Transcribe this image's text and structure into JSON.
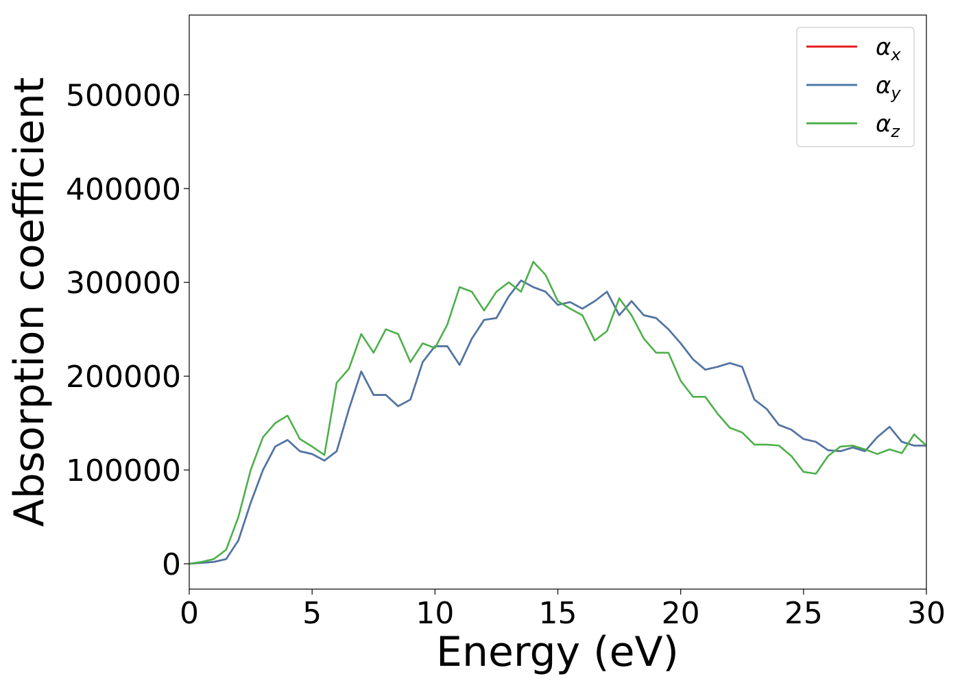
{
  "chart_data": {
    "type": "line",
    "xlabel": "Energy (eV)",
    "ylabel": "Absorption coefficient",
    "xlim": [
      0,
      30
    ],
    "ylim": [
      -27000,
      585000
    ],
    "x_ticks": [
      "0",
      "5",
      "10",
      "15",
      "20",
      "25",
      "30"
    ],
    "y_ticks": [
      "0",
      "100000",
      "200000",
      "300000",
      "400000",
      "500000"
    ],
    "x_tick_values": [
      0,
      5,
      10,
      15,
      20,
      25,
      30
    ],
    "y_tick_values": [
      0,
      100000,
      200000,
      300000,
      400000,
      500000
    ],
    "grid": false,
    "legend_position": "top-right",
    "x": [
      0,
      0.5,
      1,
      1.5,
      2,
      2.5,
      3,
      3.5,
      4,
      4.5,
      5,
      5.5,
      6,
      6.5,
      7,
      7.5,
      8,
      8.5,
      9,
      9.5,
      10,
      10.5,
      11,
      11.5,
      12,
      12.5,
      13,
      13.5,
      14,
      14.5,
      15,
      15.5,
      16,
      16.5,
      17,
      17.5,
      18,
      18.5,
      19,
      19.5,
      20,
      20.5,
      21,
      21.5,
      22,
      22.5,
      23,
      23.5,
      24,
      24.5,
      25,
      25.5,
      26,
      26.5,
      27,
      27.5,
      28,
      28.5,
      29,
      29.5,
      30
    ],
    "series": [
      {
        "name": "α",
        "subscript": "x",
        "color": "#e41a1c",
        "values": [
          0,
          1000,
          2000,
          5000,
          25000,
          65000,
          100000,
          125000,
          132000,
          120000,
          117000,
          110000,
          120000,
          165000,
          205000,
          180000,
          180000,
          168000,
          175000,
          215000,
          232000,
          232000,
          212000,
          240000,
          260000,
          262000,
          285000,
          302000,
          295000,
          290000,
          276000,
          279000,
          272000,
          280000,
          290000,
          265000,
          280000,
          265000,
          262000,
          250000,
          235000,
          218000,
          207000,
          210000,
          214000,
          210000,
          175000,
          165000,
          148000,
          143000,
          133000,
          130000,
          121000,
          120000,
          124000,
          120000,
          135000,
          146000,
          130000,
          126000,
          126000
        ]
      },
      {
        "name": "α",
        "subscript": "y",
        "color": "#4a78a8",
        "values": [
          0,
          1000,
          2000,
          5000,
          25000,
          65000,
          100000,
          125000,
          132000,
          120000,
          117000,
          110000,
          120000,
          165000,
          205000,
          180000,
          180000,
          168000,
          175000,
          215000,
          232000,
          232000,
          212000,
          240000,
          260000,
          262000,
          285000,
          302000,
          295000,
          290000,
          276000,
          279000,
          272000,
          280000,
          290000,
          265000,
          280000,
          265000,
          262000,
          250000,
          235000,
          218000,
          207000,
          210000,
          214000,
          210000,
          175000,
          165000,
          148000,
          143000,
          133000,
          130000,
          121000,
          120000,
          124000,
          120000,
          135000,
          146000,
          130000,
          126000,
          126000
        ]
      },
      {
        "name": "α",
        "subscript": "z",
        "color": "#4daf4a",
        "values": [
          0,
          2000,
          5000,
          15000,
          50000,
          100000,
          135000,
          150000,
          158000,
          133000,
          125000,
          116000,
          193000,
          208000,
          245000,
          225000,
          250000,
          245000,
          215000,
          235000,
          230000,
          255000,
          295000,
          290000,
          270000,
          290000,
          300000,
          290000,
          322000,
          308000,
          280000,
          272000,
          265000,
          238000,
          248000,
          283000,
          265000,
          240000,
          225000,
          225000,
          195000,
          178000,
          178000,
          160000,
          145000,
          140000,
          127000,
          127000,
          126000,
          115000,
          98000,
          96000,
          115000,
          125000,
          126000,
          122000,
          117000,
          122000,
          118000,
          138000,
          126000
        ]
      }
    ]
  }
}
